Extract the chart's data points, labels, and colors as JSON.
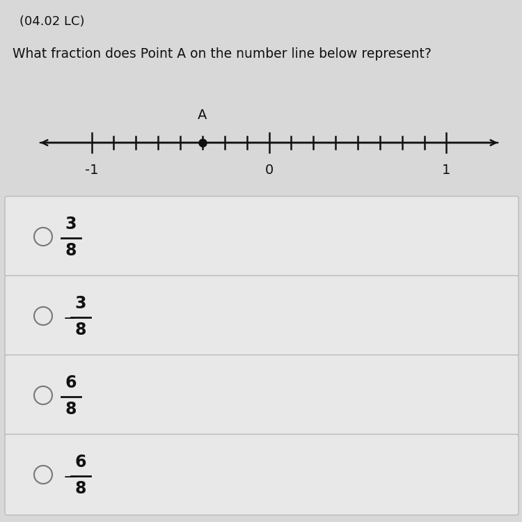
{
  "title_top": "(04.02 LC)",
  "question": "What fraction does Point A on the number line below represent?",
  "bg_color": "#d8d8d8",
  "choice_bg": "#e8e8e8",
  "choice_border": "#bbbbbb",
  "number_line": {
    "xmin": -1.3,
    "xmax": 1.3,
    "tick_min": -1.0,
    "tick_max": 1.0,
    "num_divisions": 16,
    "labels": [
      -1,
      0,
      1
    ],
    "point_A_value": -0.375,
    "point_A_label": "A"
  },
  "choices": [
    {
      "numerator": "3",
      "denominator": "8",
      "negative": false
    },
    {
      "numerator": "3",
      "denominator": "8",
      "negative": true
    },
    {
      "numerator": "6",
      "denominator": "8",
      "negative": false
    },
    {
      "numerator": "6",
      "denominator": "8",
      "negative": true
    }
  ],
  "font_color": "#111111"
}
